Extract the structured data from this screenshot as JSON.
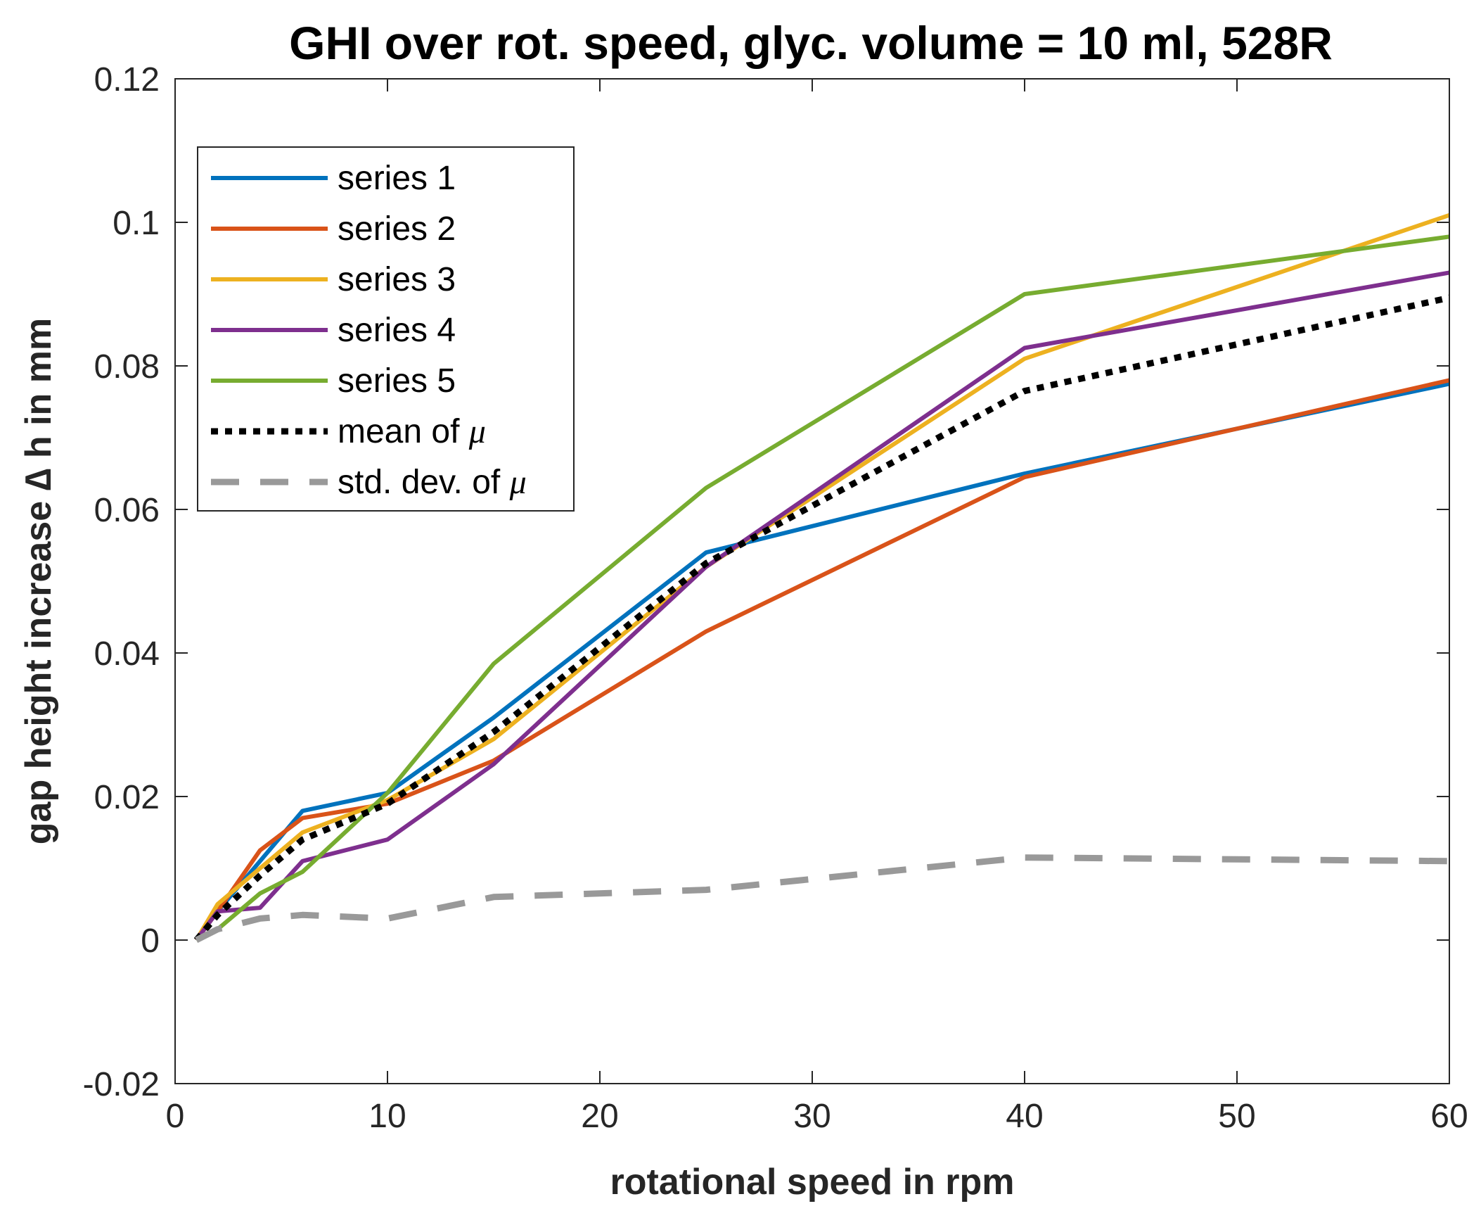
{
  "chart_data": {
    "type": "line",
    "title": "GHI over rot. speed, glyc. volume = 10 ml, 528R",
    "xlabel": "rotational speed in rpm",
    "ylabel": "gap height increase ∆ h in mm",
    "xlim": [
      0,
      60
    ],
    "ylim": [
      -0.02,
      0.12
    ],
    "xticks": [
      0,
      10,
      20,
      30,
      40,
      50,
      60
    ],
    "xtick_labels": [
      "0",
      "10",
      "20",
      "30",
      "40",
      "50",
      "60"
    ],
    "yticks": [
      -0.02,
      0,
      0.02,
      0.04,
      0.06,
      0.08,
      0.1,
      0.12
    ],
    "ytick_labels": [
      "-0.02",
      "0",
      "0.02",
      "0.04",
      "0.06",
      "0.08",
      "0.1",
      "0.12"
    ],
    "grid": false,
    "legend_position": "top-left",
    "x": [
      1,
      2,
      4,
      6,
      10,
      15,
      25,
      40,
      60
    ],
    "series": [
      {
        "name": "series 1",
        "color": "#0072BD",
        "style": "solid",
        "values": [
          0,
          0.004,
          0.011,
          0.018,
          0.0205,
          0.031,
          0.054,
          0.065,
          0.0775
        ]
      },
      {
        "name": "series 2",
        "color": "#D95319",
        "style": "solid",
        "values": [
          0,
          0.004,
          0.0125,
          0.017,
          0.019,
          0.025,
          0.043,
          0.0645,
          0.078
        ]
      },
      {
        "name": "series 3",
        "color": "#EDB120",
        "style": "solid",
        "values": [
          0,
          0.005,
          0.01,
          0.015,
          0.0195,
          0.028,
          0.052,
          0.081,
          0.101
        ]
      },
      {
        "name": "series 4",
        "color": "#7E2F8E",
        "style": "solid",
        "values": [
          0,
          0.004,
          0.0045,
          0.011,
          0.014,
          0.0245,
          0.052,
          0.0825,
          0.093
        ]
      },
      {
        "name": "series 5",
        "color": "#77AC30",
        "style": "solid",
        "values": [
          0,
          0.0015,
          0.0065,
          0.0095,
          0.0205,
          0.0385,
          0.063,
          0.09,
          0.098
        ]
      },
      {
        "name": "mean of ",
        "name_symbol": "μ",
        "color": "#000000",
        "style": "dotted",
        "values": [
          0,
          0.0035,
          0.009,
          0.014,
          0.019,
          0.029,
          0.0525,
          0.0765,
          0.0895
        ]
      },
      {
        "name": "std. dev. of ",
        "name_symbol": "μ",
        "color": "#999999",
        "style": "dashed",
        "values": [
          0,
          0.0015,
          0.003,
          0.0035,
          0.003,
          0.006,
          0.007,
          0.0115,
          0.011
        ]
      }
    ]
  }
}
